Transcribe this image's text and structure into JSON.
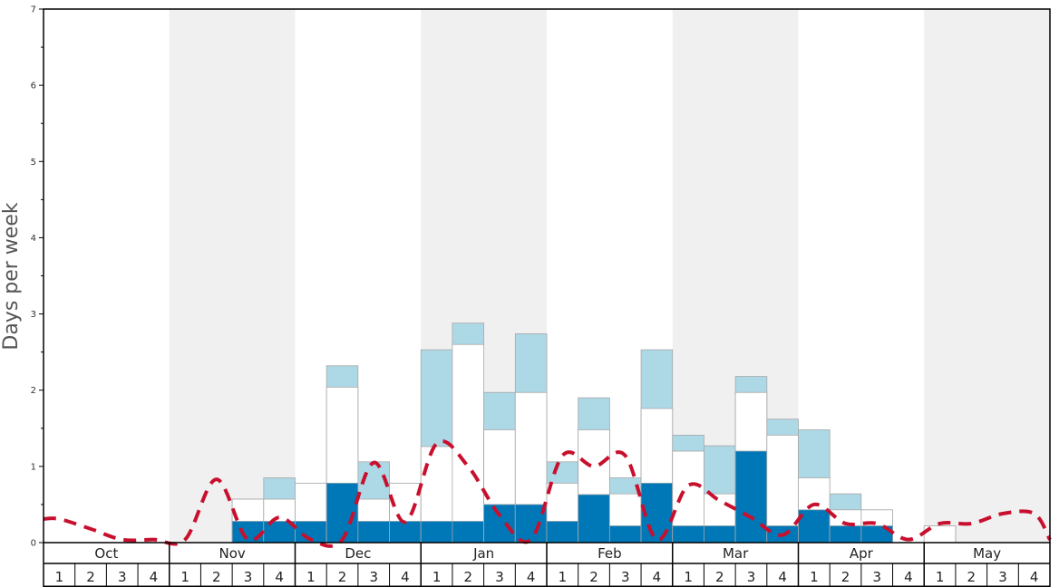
{
  "chart_data": {
    "type": "bar",
    "ylabel": "Days per week",
    "ylim": [
      0,
      7
    ],
    "yticks": [
      0,
      1,
      2,
      3,
      4,
      5,
      6,
      7
    ],
    "months": [
      "Oct",
      "Nov",
      "Dec",
      "Jan",
      "Feb",
      "Mar",
      "Apr",
      "May"
    ],
    "week_labels": [
      "1",
      "2",
      "3",
      "4"
    ],
    "colors": {
      "dark_segment": "#0077b6",
      "white_segment": "#ffffff",
      "light_segment": "#add8e6",
      "dashed_line": "#c8102e",
      "shaded_band": "#f0f0f0"
    },
    "series": [
      {
        "values": [
          null,
          null,
          null,
          null,
          null,
          null,
          0.28,
          0.28,
          0.28,
          0.78,
          0.28,
          0.28,
          0.28,
          0.28,
          0.5,
          0.5,
          0.28,
          0.63,
          0.22,
          0.78,
          0.22,
          0.22,
          1.2,
          0.22,
          0.43,
          0.22,
          0.22,
          null,
          null,
          null,
          null,
          null
        ]
      },
      {
        "values": [
          null,
          null,
          null,
          null,
          null,
          null,
          0.57,
          0.57,
          0.78,
          2.04,
          0.57,
          0.78,
          1.26,
          2.6,
          1.48,
          1.97,
          0.78,
          1.48,
          0.64,
          1.76,
          1.2,
          0.64,
          1.97,
          1.41,
          0.85,
          0.43,
          0.43,
          null,
          0.22,
          null,
          null,
          null
        ]
      },
      {
        "values": [
          null,
          null,
          null,
          null,
          null,
          null,
          0.57,
          0.85,
          0.78,
          2.32,
          1.06,
          0.78,
          2.53,
          2.88,
          1.97,
          2.74,
          1.06,
          1.9,
          0.85,
          2.53,
          1.41,
          1.27,
          2.18,
          1.62,
          1.48,
          0.64,
          0.43,
          null,
          0.22,
          null,
          null,
          null
        ]
      },
      {
        "style": "dashed",
        "values": [
          0.31,
          0.18,
          0.04,
          0.04,
          0.04,
          0.83,
          0.04,
          0.33,
          0.04,
          0.04,
          1.05,
          0.27,
          1.3,
          1.0,
          0.36,
          0.04,
          1.14,
          1.0,
          1.14,
          0.04,
          0.75,
          0.55,
          0.33,
          0.1,
          0.5,
          0.25,
          0.25,
          0.04,
          0.25,
          0.25,
          0.38,
          0.38
        ]
      }
    ],
    "x": [
      "Oct 1",
      "Oct 2",
      "Oct 3",
      "Oct 4",
      "Nov 1",
      "Nov 2",
      "Nov 3",
      "Nov 4",
      "Dec 1",
      "Dec 2",
      "Dec 3",
      "Dec 4",
      "Jan 1",
      "Jan 2",
      "Jan 3",
      "Jan 4",
      "Feb 1",
      "Feb 2",
      "Feb 3",
      "Feb 4",
      "Mar 1",
      "Mar 2",
      "Mar 3",
      "Mar 4",
      "Apr 1",
      "Apr 2",
      "Apr 3",
      "Apr 4",
      "May 1",
      "May 2",
      "May 3",
      "May 4"
    ],
    "grid": false,
    "legend": "none"
  }
}
